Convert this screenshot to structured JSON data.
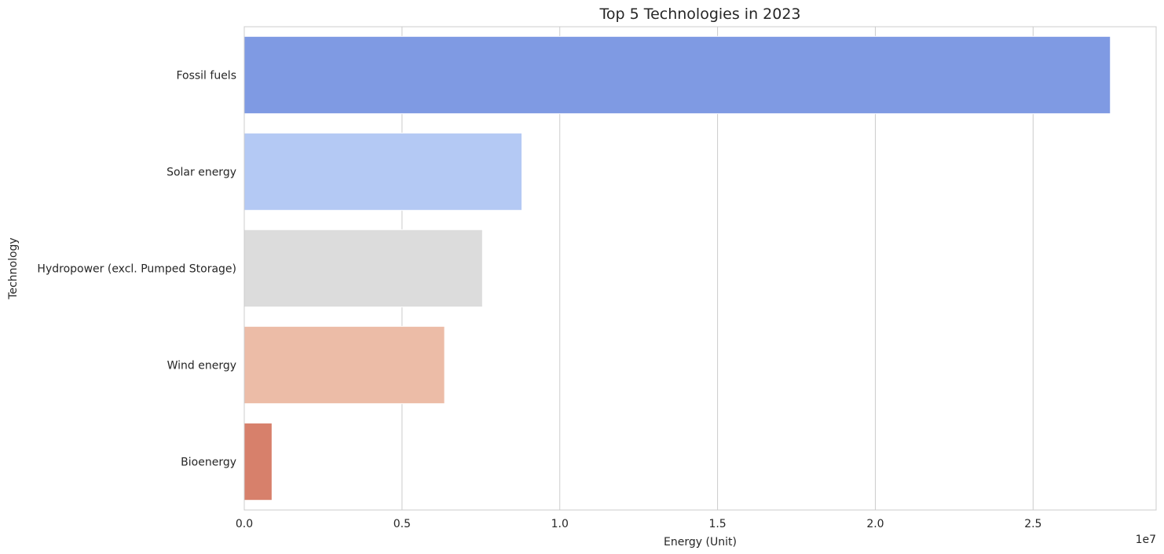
{
  "chart_data": {
    "type": "bar",
    "orientation": "horizontal",
    "title": "Top 5 Technologies in 2023",
    "xlabel": "Energy (Unit)",
    "ylabel": "Technology",
    "offset_text": "1e7",
    "categories": [
      "Fossil fuels",
      "Solar energy",
      "Hydropower (excl. Pumped Storage)",
      "Wind energy",
      "Bioenergy"
    ],
    "values": [
      27450000,
      8800000,
      7550000,
      6350000,
      880000
    ],
    "colors": [
      "#7f9ae3",
      "#b4c9f4",
      "#dcdcdc",
      "#ecbca7",
      "#d7806b"
    ],
    "xlim": [
      0,
      28900000
    ],
    "xticks": [
      0,
      5000000,
      10000000,
      15000000,
      20000000,
      25000000
    ],
    "xtick_labels": [
      "0.0",
      "0.5",
      "1.0",
      "1.5",
      "2.0",
      "2.5"
    ],
    "grid": "vertical",
    "legend": "none"
  }
}
